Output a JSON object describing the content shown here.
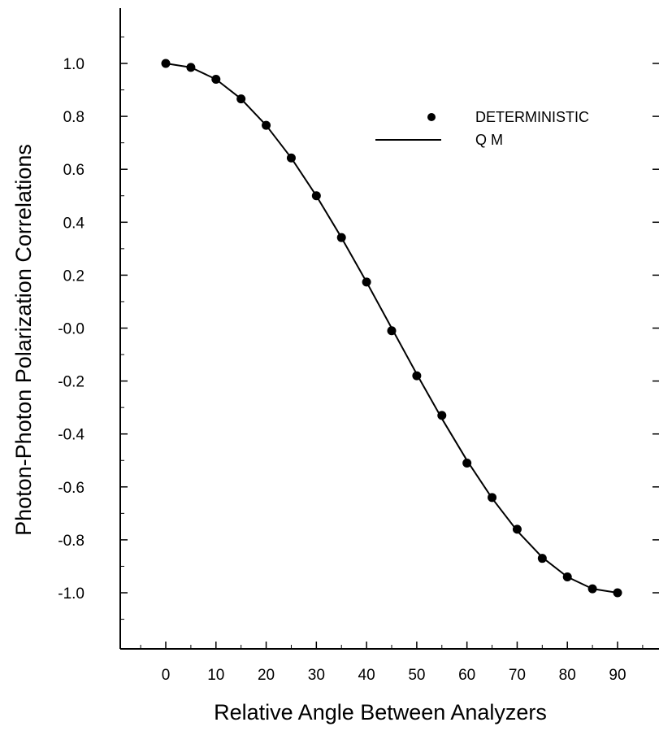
{
  "chart_data": {
    "type": "scatter",
    "xlabel": "Relative Angle Between Analyzers",
    "ylabel": "Photon-Photon Polarization Correlations",
    "xlim": [
      -9,
      98
    ],
    "ylim": [
      -1.2,
      1.2
    ],
    "x_ticks": [
      0,
      10,
      20,
      30,
      40,
      50,
      60,
      70,
      80,
      90
    ],
    "y_ticks": [
      1.0,
      0.8,
      0.6,
      0.4,
      0.2,
      0.0,
      -0.2,
      -0.4,
      -0.6,
      -0.8,
      -1.0
    ],
    "y_tick_labels": [
      "1.0",
      "0.8",
      "0.6",
      "0.4",
      "0.2",
      "-0.0",
      "-0.2",
      "-0.4",
      "-0.6",
      "-0.8",
      "-1.0"
    ],
    "x_tick_labels": [
      "0",
      "10",
      "20",
      "30",
      "40",
      "50",
      "60",
      "70",
      "80",
      "90"
    ],
    "grid": false,
    "legend_position": "top-right",
    "series": [
      {
        "name": "DETERMINISTIC",
        "kind": "points",
        "x": [
          0,
          5,
          10,
          15,
          20,
          25,
          30,
          35,
          40,
          45,
          50,
          55,
          60,
          65,
          70,
          75,
          80,
          85,
          90
        ],
        "y": [
          1.0,
          0.985,
          0.94,
          0.866,
          0.766,
          0.643,
          0.5,
          0.342,
          0.174,
          -0.01,
          -0.18,
          -0.33,
          -0.51,
          -0.64,
          -0.76,
          -0.87,
          -0.94,
          -0.985,
          -1.0
        ]
      },
      {
        "name": "Q M",
        "kind": "line",
        "x": [
          0,
          5,
          10,
          15,
          20,
          25,
          30,
          35,
          40,
          45,
          50,
          55,
          60,
          65,
          70,
          75,
          80,
          85,
          90
        ],
        "y": [
          1.0,
          0.985,
          0.94,
          0.866,
          0.766,
          0.643,
          0.5,
          0.342,
          0.174,
          0.0,
          -0.174,
          -0.342,
          -0.5,
          -0.643,
          -0.766,
          -0.866,
          -0.94,
          -0.985,
          -1.0
        ]
      }
    ]
  }
}
